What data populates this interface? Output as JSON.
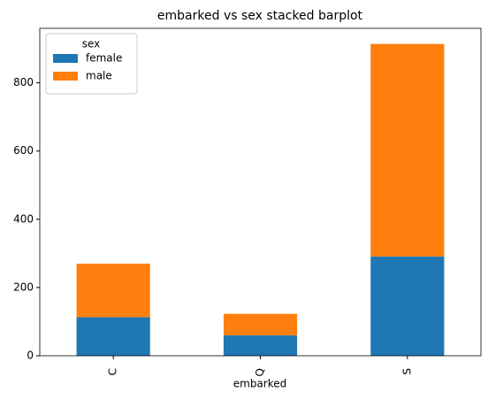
{
  "chart_data": {
    "type": "stacked-bar",
    "title": "embarked vs sex stacked barplot",
    "x_label": "embarked",
    "categories": [
      "C",
      "Q",
      "S"
    ],
    "series": [
      {
        "name": "female",
        "color": "#1f77b4",
        "values": [
          113,
          60,
          291
        ]
      },
      {
        "name": "male",
        "color": "#ff7f0e",
        "values": [
          157,
          63,
          623
        ]
      }
    ],
    "legend_title": "sex",
    "legend_position": "upper-left",
    "ylim": [
      0,
      959.7
    ],
    "yticks": [
      0,
      200,
      400,
      600,
      800
    ],
    "grid": false
  }
}
